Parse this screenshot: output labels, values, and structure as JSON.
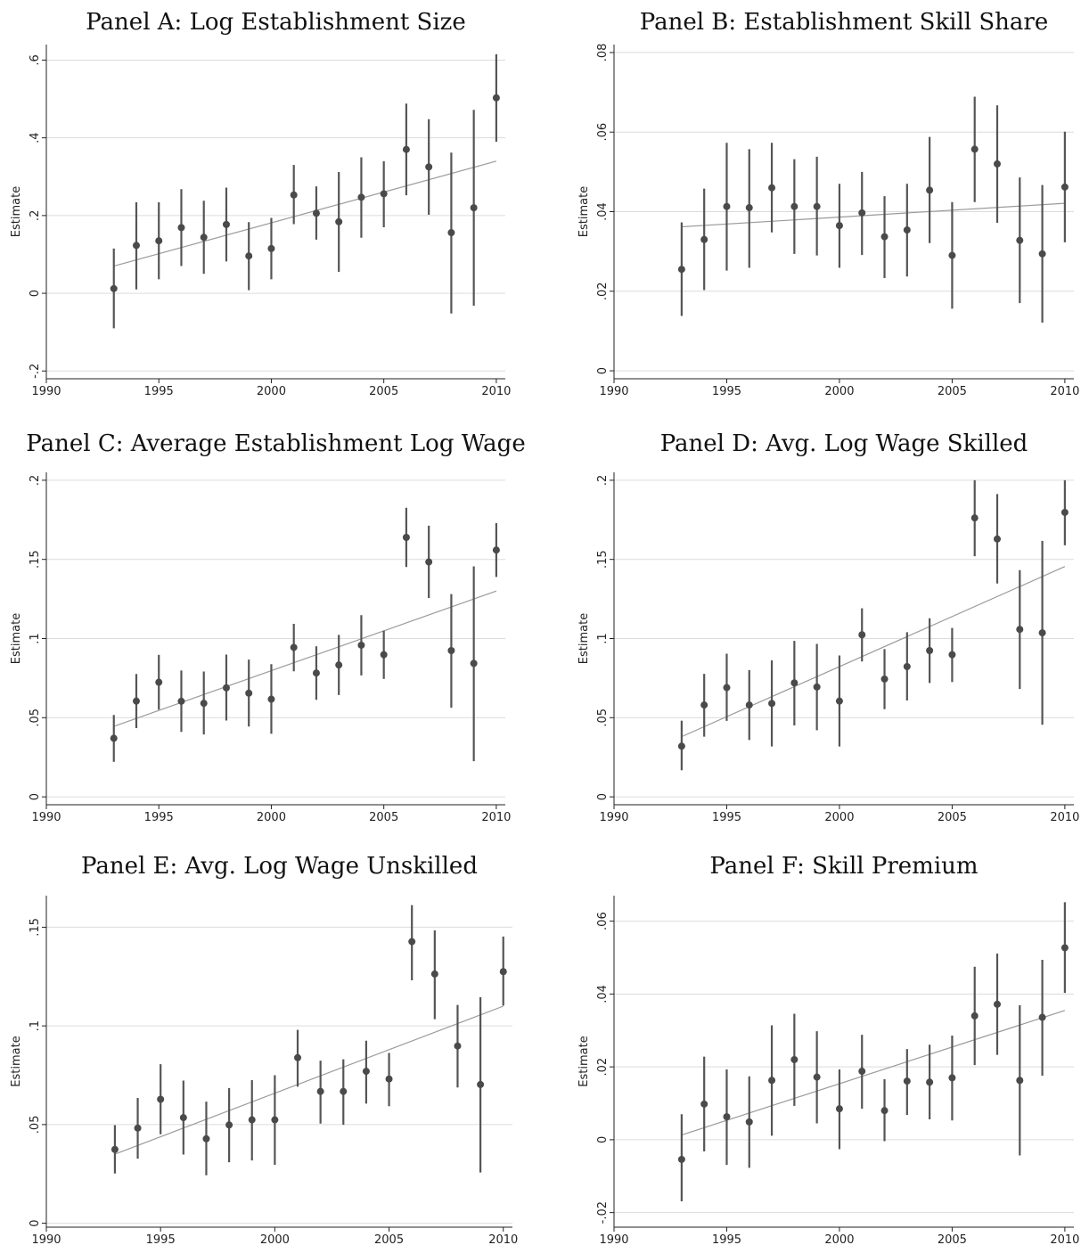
{
  "chart_data": [
    {
      "type": "scatter",
      "title": "Panel A: Log Establishment Size",
      "ylabel": "Estimate",
      "xlabel": "",
      "xlim": [
        1990,
        2010.4
      ],
      "ylim": [
        -0.22,
        0.64
      ],
      "xticks": [
        1990,
        1995,
        2000,
        2005,
        2010
      ],
      "xtick_labels": [
        "1990",
        "1995",
        "2000",
        "2005",
        "2010"
      ],
      "yticks": [
        -0.2,
        0,
        0.2,
        0.4,
        0.6
      ],
      "ytick_labels": [
        "-.2",
        "0",
        ".2",
        ".4",
        ".6"
      ],
      "grid": true,
      "x": [
        1993,
        1994,
        1995,
        1996,
        1997,
        1998,
        1999,
        2000,
        2001,
        2002,
        2003,
        2004,
        2005,
        2006,
        2007,
        2008,
        2009,
        2010
      ],
      "y": [
        0.012,
        0.123,
        0.135,
        0.169,
        0.144,
        0.177,
        0.096,
        0.115,
        0.253,
        0.206,
        0.184,
        0.247,
        0.256,
        0.37,
        0.325,
        0.156,
        0.22,
        0.503
      ],
      "ci_low": [
        -0.09,
        0.01,
        0.036,
        0.07,
        0.05,
        0.082,
        0.008,
        0.036,
        0.178,
        0.138,
        0.055,
        0.143,
        0.17,
        0.252,
        0.202,
        -0.052,
        -0.032,
        0.39
      ],
      "ci_high": [
        0.115,
        0.234,
        0.234,
        0.268,
        0.238,
        0.272,
        0.183,
        0.194,
        0.33,
        0.275,
        0.312,
        0.35,
        0.34,
        0.488,
        0.448,
        0.362,
        0.472,
        0.615
      ],
      "fit": {
        "x": [
          1993,
          2010
        ],
        "y": [
          0.07,
          0.34
        ]
      }
    },
    {
      "type": "scatter",
      "title": "Panel B: Establishment Skill Share",
      "ylabel": "Estimate",
      "xlabel": "",
      "xlim": [
        1990,
        2010.4
      ],
      "ylim": [
        -0.002,
        0.082
      ],
      "xticks": [
        1990,
        1995,
        2000,
        2005,
        2010
      ],
      "xtick_labels": [
        "1990",
        "1995",
        "2000",
        "2005",
        "2010"
      ],
      "yticks": [
        0,
        0.02,
        0.04,
        0.06,
        0.08
      ],
      "ytick_labels": [
        "0",
        ".02",
        ".04",
        ".06",
        ".08"
      ],
      "grid": true,
      "x": [
        1993,
        1994,
        1995,
        1996,
        1997,
        1998,
        1999,
        2000,
        2001,
        2002,
        2003,
        2004,
        2005,
        2006,
        2007,
        2008,
        2009,
        2010
      ],
      "y": [
        0.0255,
        0.033,
        0.0413,
        0.041,
        0.046,
        0.0413,
        0.0413,
        0.0365,
        0.0397,
        0.0337,
        0.0354,
        0.0454,
        0.029,
        0.0557,
        0.052,
        0.0328,
        0.0294,
        0.0462
      ],
      "ci_low": [
        0.0138,
        0.0203,
        0.0252,
        0.0259,
        0.0348,
        0.0294,
        0.029,
        0.0259,
        0.0291,
        0.0233,
        0.0237,
        0.0321,
        0.0156,
        0.0424,
        0.0372,
        0.017,
        0.0121,
        0.0323
      ],
      "ci_high": [
        0.0373,
        0.0458,
        0.0573,
        0.0557,
        0.0573,
        0.0532,
        0.0538,
        0.047,
        0.05,
        0.0439,
        0.047,
        0.0588,
        0.0424,
        0.0689,
        0.0667,
        0.0486,
        0.0467,
        0.0601
      ],
      "fit": {
        "x": [
          1993,
          2010
        ],
        "y": [
          0.0362,
          0.0421
        ]
      }
    },
    {
      "type": "scatter",
      "title": "Panel C: Average Establishment Log Wage",
      "ylabel": "Estimate",
      "xlabel": "",
      "xlim": [
        1990,
        2010.4
      ],
      "ylim": [
        -0.005,
        0.205
      ],
      "xticks": [
        1990,
        1995,
        2000,
        2005,
        2010
      ],
      "xtick_labels": [
        "1990",
        "1995",
        "2000",
        "2005",
        "2010"
      ],
      "yticks": [
        0,
        0.05,
        0.1,
        0.15,
        0.2
      ],
      "ytick_labels": [
        "0",
        ".05",
        ".1",
        ".15",
        ".2"
      ],
      "grid": true,
      "x": [
        1993,
        1994,
        1995,
        1996,
        1997,
        1998,
        1999,
        2000,
        2001,
        2002,
        2003,
        2004,
        2005,
        2006,
        2007,
        2008,
        2009,
        2010
      ],
      "y": [
        0.037,
        0.0605,
        0.0724,
        0.0604,
        0.0591,
        0.0689,
        0.0655,
        0.0617,
        0.0944,
        0.0782,
        0.0833,
        0.0958,
        0.0898,
        0.1639,
        0.1484,
        0.0924,
        0.0843,
        0.1559
      ],
      "ci_low": [
        0.0221,
        0.0434,
        0.0551,
        0.041,
        0.0394,
        0.0482,
        0.0444,
        0.0398,
        0.0793,
        0.0613,
        0.0643,
        0.0767,
        0.0745,
        0.1452,
        0.1256,
        0.0563,
        0.0225,
        0.1389
      ],
      "ci_high": [
        0.0517,
        0.0776,
        0.0897,
        0.0798,
        0.0792,
        0.0899,
        0.0867,
        0.0838,
        0.1093,
        0.0951,
        0.1023,
        0.1148,
        0.105,
        0.1826,
        0.1713,
        0.1281,
        0.1456,
        0.1729
      ],
      "fit": {
        "x": [
          1993,
          2010
        ],
        "y": [
          0.0445,
          0.13
        ]
      }
    },
    {
      "type": "scatter",
      "title": "Panel D: Avg. Log Wage Skilled",
      "ylabel": "Estimate",
      "xlabel": "",
      "xlim": [
        1990,
        2010.4
      ],
      "ylim": [
        -0.005,
        0.205
      ],
      "xticks": [
        1990,
        1995,
        2000,
        2005,
        2010
      ],
      "xtick_labels": [
        "1990",
        "1995",
        "2000",
        "2005",
        "2010"
      ],
      "yticks": [
        0,
        0.05,
        0.1,
        0.15,
        0.2
      ],
      "ytick_labels": [
        "0",
        ".05",
        ".1",
        ".15",
        ".2"
      ],
      "grid": true,
      "x": [
        1993,
        1994,
        1995,
        1996,
        1997,
        1998,
        1999,
        2000,
        2001,
        2002,
        2003,
        2004,
        2005,
        2006,
        2007,
        2008,
        2009,
        2010
      ],
      "y": [
        0.032,
        0.058,
        0.069,
        0.058,
        0.059,
        0.072,
        0.0694,
        0.0605,
        0.1024,
        0.0744,
        0.0823,
        0.0924,
        0.0898,
        0.1762,
        0.1629,
        0.1058,
        0.1036,
        0.1797
      ],
      "ci_low": [
        0.0168,
        0.038,
        0.048,
        0.0359,
        0.0318,
        0.0451,
        0.0421,
        0.0318,
        0.0855,
        0.0554,
        0.0609,
        0.0719,
        0.0725,
        0.152,
        0.1348,
        0.0681,
        0.0455,
        0.1589
      ],
      "ci_high": [
        0.0481,
        0.0777,
        0.0904,
        0.0801,
        0.0862,
        0.0985,
        0.0966,
        0.0893,
        0.1191,
        0.0933,
        0.104,
        0.1128,
        0.1067,
        0.2,
        0.1913,
        0.1432,
        0.1617,
        0.2
      ],
      "fit": {
        "x": [
          1993,
          2010
        ],
        "y": [
          0.038,
          0.1455
        ]
      }
    },
    {
      "type": "scatter",
      "title": "Panel E: Avg. Log Wage Unskilled",
      "ylabel": "Estimate",
      "xlabel": "",
      "xlim": [
        1990,
        2010.4
      ],
      "ylim": [
        -0.002,
        0.166
      ],
      "xticks": [
        1990,
        1995,
        2000,
        2005,
        2010
      ],
      "xtick_labels": [
        "1990",
        "1995",
        "2000",
        "2005",
        "2010"
      ],
      "yticks": [
        0,
        0.05,
        0.1,
        0.15
      ],
      "ytick_labels": [
        "0",
        ".05",
        ".1",
        ".15"
      ],
      "grid": true,
      "x": [
        1993,
        1994,
        1995,
        1996,
        1997,
        1998,
        1999,
        2000,
        2001,
        2002,
        2003,
        2004,
        2005,
        2006,
        2007,
        2008,
        2009,
        2010
      ],
      "y": [
        0.0374,
        0.0482,
        0.0628,
        0.0535,
        0.0428,
        0.0498,
        0.0524,
        0.0524,
        0.0839,
        0.0668,
        0.0668,
        0.077,
        0.0731,
        0.1427,
        0.1263,
        0.0898,
        0.0703,
        0.1275
      ],
      "ci_low": [
        0.0252,
        0.0327,
        0.0451,
        0.0348,
        0.0243,
        0.0309,
        0.0318,
        0.0296,
        0.0692,
        0.0505,
        0.0499,
        0.0606,
        0.0593,
        0.1231,
        0.1034,
        0.0688,
        0.0257,
        0.1103
      ],
      "ci_high": [
        0.0497,
        0.0635,
        0.0806,
        0.0723,
        0.0616,
        0.0685,
        0.0725,
        0.075,
        0.098,
        0.0824,
        0.0831,
        0.0925,
        0.0863,
        0.1612,
        0.1484,
        0.1106,
        0.1145,
        0.1453
      ],
      "fit": {
        "x": [
          1993,
          2010
        ],
        "y": [
          0.035,
          0.11
        ]
      }
    },
    {
      "type": "scatter",
      "title": "Panel F: Skill Premium",
      "ylabel": "Estimate",
      "xlabel": "",
      "xlim": [
        1990,
        2010.4
      ],
      "ylim": [
        -0.024,
        0.067
      ],
      "xticks": [
        1990,
        1995,
        2000,
        2005,
        2010
      ],
      "xtick_labels": [
        "1990",
        "1995",
        "2000",
        "2005",
        "2010"
      ],
      "yticks": [
        -0.02,
        0,
        0.02,
        0.04,
        0.06
      ],
      "ytick_labels": [
        "-.02",
        "0",
        ".02",
        ".04",
        ".06"
      ],
      "grid": true,
      "x": [
        1993,
        1994,
        1995,
        1996,
        1997,
        1998,
        1999,
        2000,
        2001,
        2002,
        2003,
        2004,
        2005,
        2006,
        2007,
        2008,
        2009,
        2010
      ],
      "y": [
        -0.0054,
        0.0098,
        0.0063,
        0.0049,
        0.0163,
        0.022,
        0.0172,
        0.0085,
        0.0188,
        0.008,
        0.0161,
        0.0158,
        0.017,
        0.034,
        0.0372,
        0.0163,
        0.0336,
        0.0527
      ],
      "ci_low": [
        -0.0169,
        -0.0032,
        -0.0069,
        -0.0077,
        0.0011,
        0.0093,
        0.0045,
        -0.0026,
        0.0085,
        -0.0004,
        0.0068,
        0.0056,
        0.0053,
        0.0205,
        0.0233,
        -0.0043,
        0.0176,
        0.0403
      ],
      "ci_high": [
        0.007,
        0.0228,
        0.0193,
        0.0174,
        0.0314,
        0.0346,
        0.0298,
        0.0193,
        0.0288,
        0.0166,
        0.0249,
        0.0261,
        0.0286,
        0.0475,
        0.0511,
        0.0369,
        0.0494,
        0.0652
      ],
      "fit": {
        "x": [
          1993,
          2010
        ],
        "y": [
          0.0013,
          0.0355
        ]
      }
    }
  ]
}
